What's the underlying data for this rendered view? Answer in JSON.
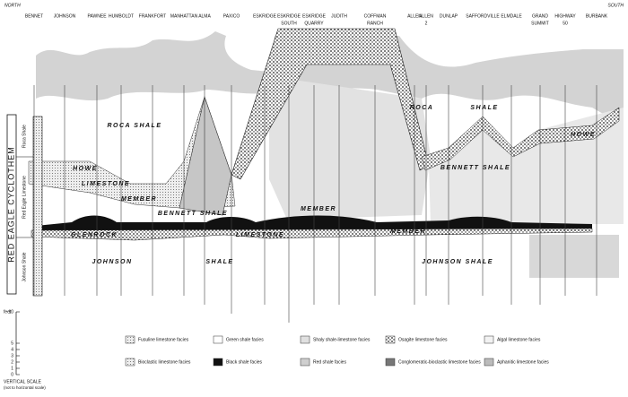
{
  "header": {
    "north": "NORTH",
    "south": "SOUTH"
  },
  "localities": [
    {
      "lines": [
        "BENNET"
      ]
    },
    {
      "lines": [
        "JOHNSON"
      ]
    },
    {
      "lines": [
        "PAWNEE"
      ]
    },
    {
      "lines": [
        "HUMBOLDT"
      ]
    },
    {
      "lines": [
        "FRANKFORT"
      ]
    },
    {
      "lines": [
        "MANHATTAN"
      ]
    },
    {
      "lines": [
        "ALMA"
      ]
    },
    {
      "lines": [
        "PAXICO"
      ]
    },
    {
      "lines": [
        "ESKRIDGE"
      ]
    },
    {
      "lines": [
        "ESKRIDGE",
        "SOUTH"
      ]
    },
    {
      "lines": [
        "ESKRIDGE",
        "QUARRY"
      ]
    },
    {
      "lines": [
        "JUDITH"
      ]
    },
    {
      "lines": [
        "COFFMAN",
        "RANCH"
      ]
    },
    {
      "lines": [
        "ALLEN"
      ]
    },
    {
      "lines": [
        "ALLEN",
        "2"
      ]
    },
    {
      "lines": [
        "DUNLAP"
      ]
    },
    {
      "lines": [
        "SAFFORDVILLE"
      ]
    },
    {
      "lines": [
        "ELMDALE"
      ]
    },
    {
      "lines": [
        "GRAND",
        "SUMMIT"
      ]
    },
    {
      "lines": [
        "HIGHWAY",
        "50"
      ]
    },
    {
      "lines": [
        "BURBANK"
      ]
    }
  ],
  "column": {
    "title": "RED EAGLE CYCLOTHEM",
    "units": [
      "Roca Shale",
      "Red Eagle Limestone",
      "Johnson Shale"
    ]
  },
  "section_labels": [
    "ROCA SHALE",
    "ROCA",
    "SHALE",
    "HOWE",
    "LIMESTONE",
    "MEMBER",
    "BENNETT SHALE",
    "MEMBER",
    "GLENROCK",
    "LIMESTONE",
    "MEMBER",
    "JOHNSON",
    "SHALE",
    "JOHNSON SHALE",
    "BENNETT SHALE",
    "HOWE"
  ],
  "legend": [
    "Fusuline limestone facies",
    "Green shale facies",
    "Shaly shale-limestone facies",
    "Osagite limestone facies",
    "Algal limestone facies",
    "Bioclastic limestone facies",
    "Black shale facies",
    "Red shale facies",
    "Conglomeratic-bioclastic limestone facies",
    "Aphanitic limestone facies"
  ],
  "scale": {
    "unit": "feet",
    "ticks": [
      10,
      5,
      4,
      3,
      2,
      1,
      0
    ],
    "title": "VERTICAL SCALE",
    "note": "(not to horizontal scale)"
  }
}
